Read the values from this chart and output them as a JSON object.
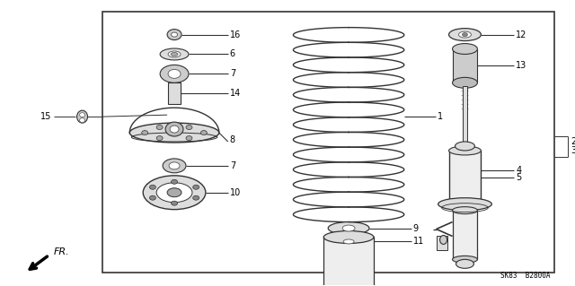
{
  "bg_color": "#ffffff",
  "border_color": "#333333",
  "line_color": "#333333",
  "text_color": "#000000",
  "fig_width": 6.4,
  "fig_height": 3.19,
  "title_code": "SK83  B2800A",
  "fr_label": "FR."
}
